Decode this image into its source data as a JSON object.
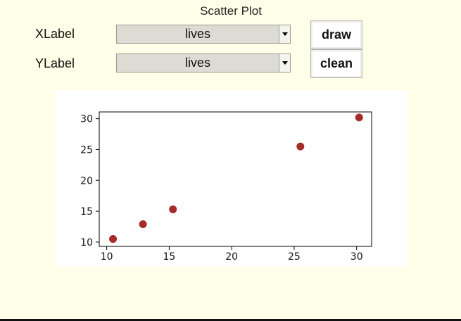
{
  "app": {
    "title": "Scatter Plot"
  },
  "controls": {
    "xlabel": {
      "label": "XLabel",
      "value": "lives"
    },
    "ylabel": {
      "label": "YLabel",
      "value": "lives"
    },
    "draw_label": "draw",
    "clean_label": "clean"
  },
  "colors": {
    "background": "#fffee8",
    "point": "#a52a2a"
  },
  "chart_data": {
    "type": "scatter",
    "title": "",
    "xlabel": "",
    "ylabel": "",
    "xlim": [
      9.4,
      31.2
    ],
    "ylim": [
      9.3,
      31.1
    ],
    "xticks": [
      10,
      15,
      20,
      25,
      30
    ],
    "yticks": [
      10,
      15,
      20,
      25,
      30
    ],
    "grid": false,
    "series": [
      {
        "x": [
          10.5,
          12.9,
          15.3,
          25.5,
          30.2
        ],
        "y": [
          10.5,
          12.9,
          15.3,
          25.5,
          30.2
        ]
      }
    ]
  }
}
